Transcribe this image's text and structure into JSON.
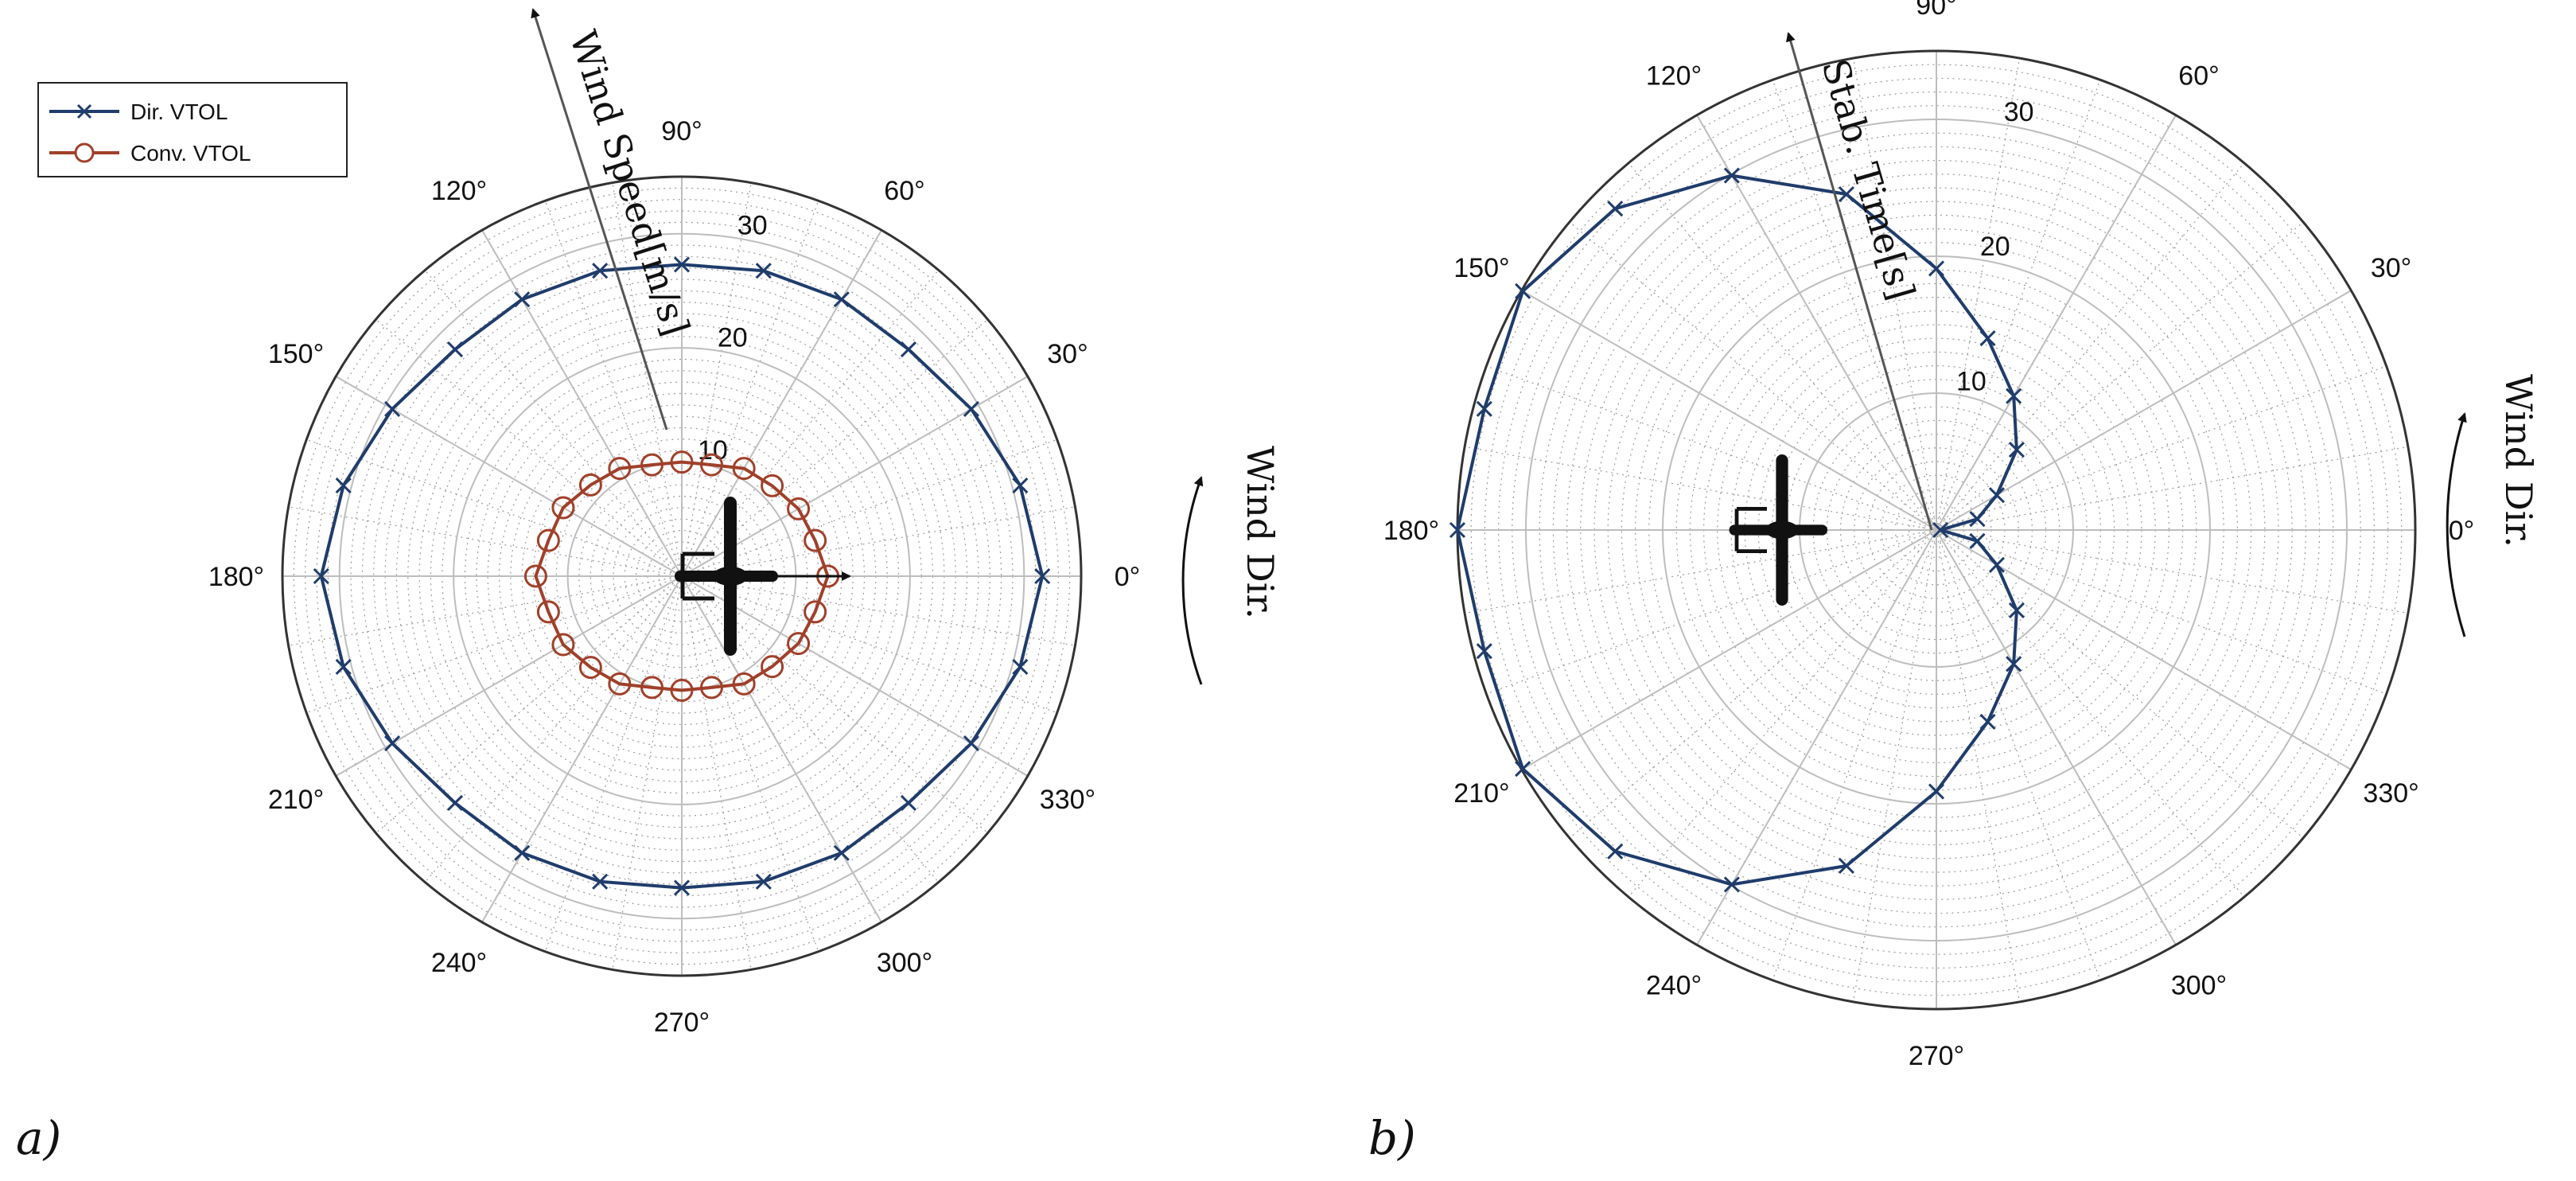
{
  "chart_data": [
    {
      "type": "polar-line",
      "panel_label": "a)",
      "radial_label": "Wind Speed[m/s]",
      "wind_label": "Wind Dir.",
      "rlim": [
        0,
        35
      ],
      "radial_ticks": [
        10,
        20,
        30
      ],
      "angle_ticks": [
        0,
        30,
        60,
        90,
        120,
        150,
        180,
        210,
        240,
        270,
        300,
        330
      ],
      "angle_tick_labels": [
        "0°",
        "30°",
        "60°",
        "90°",
        "120°",
        "150°",
        "180°",
        "210°",
        "240°",
        "270°",
        "300°",
        "330°"
      ],
      "grid": true,
      "legend_position": "top-left",
      "series": [
        {
          "name": "Dir. VTOL",
          "color": "#1f3c6b",
          "marker": "x",
          "theta": [
            0,
            15,
            30,
            45,
            60,
            75,
            90,
            105,
            120,
            135,
            150,
            165,
            180,
            195,
            210,
            225,
            240,
            255,
            270,
            285,
            300,
            315,
            330,
            345,
            360
          ],
          "r": [
            31.6,
            30.7,
            29.3,
            28.1,
            28.0,
            27.7,
            27.3,
            27.7,
            28.0,
            28.1,
            29.3,
            30.7,
            31.6,
            30.7,
            29.3,
            28.1,
            28.0,
            27.7,
            27.3,
            27.7,
            28.0,
            28.1,
            29.3,
            30.7,
            31.6
          ]
        },
        {
          "name": "Conv. VTOL",
          "color": "#a0402a",
          "marker": "o",
          "theta": [
            0,
            15,
            30,
            45,
            60,
            75,
            90,
            105,
            120,
            135,
            150,
            165,
            180,
            195,
            210,
            225,
            240,
            255,
            270,
            285,
            300,
            315,
            330,
            345,
            360
          ],
          "r": [
            12.8,
            12.1,
            11.8,
            11.2,
            10.9,
            10.1,
            10.0,
            10.1,
            10.9,
            11.3,
            12.0,
            12.1,
            12.8,
            12.1,
            12.0,
            11.3,
            10.9,
            10.1,
            10.0,
            10.1,
            10.9,
            11.2,
            11.8,
            12.1,
            12.8
          ]
        }
      ]
    },
    {
      "type": "polar-line",
      "panel_label": "b)",
      "radial_label": "Stab. Time[s]",
      "wind_label": "Wind Dir.",
      "rlim": [
        0,
        35
      ],
      "radial_ticks": [
        10,
        20,
        30
      ],
      "angle_ticks": [
        0,
        30,
        60,
        90,
        120,
        150,
        180,
        210,
        240,
        270,
        300,
        330
      ],
      "angle_tick_labels": [
        "0°",
        "30°",
        "60°",
        "90°",
        "120°",
        "150°",
        "180°",
        "210°",
        "240°",
        "270°",
        "300°",
        "330°"
      ],
      "grid": true,
      "series": [
        {
          "name": "Dir. VTOL",
          "color": "#1f3c6b",
          "marker": "x",
          "theta": [
            0,
            15,
            30,
            45,
            60,
            75,
            90,
            105,
            120,
            135,
            150,
            165,
            180,
            195,
            210,
            225,
            240,
            255,
            270,
            285,
            300,
            315,
            330,
            345,
            360
          ],
          "r": [
            0.3,
            3.1,
            5.1,
            8.3,
            11.3,
            14.5,
            19.1,
            25.4,
            29.9,
            33.2,
            34.9,
            34.2,
            35.0,
            34.2,
            34.9,
            33.2,
            29.9,
            25.4,
            19.1,
            14.5,
            11.3,
            8.3,
            5.1,
            3.1,
            0.3
          ]
        }
      ]
    }
  ]
}
